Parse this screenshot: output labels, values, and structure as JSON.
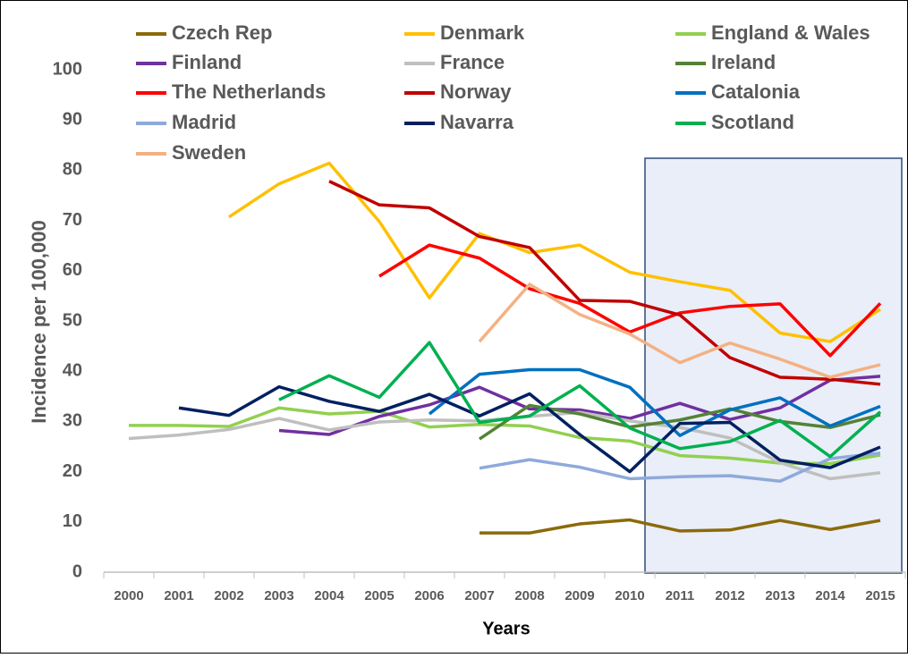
{
  "chart_data": {
    "type": "line",
    "y_label": "Incidence per 100,000",
    "x_label": "Years",
    "categories": [
      "2000",
      "2001",
      "2002",
      "2003",
      "2004",
      "2005",
      "2006",
      "2007",
      "2008",
      "2009",
      "2010",
      "2011",
      "2012",
      "2013",
      "2014",
      "2015"
    ],
    "ylim": [
      0,
      100
    ],
    "yticks": [
      0,
      10,
      20,
      30,
      40,
      50,
      60,
      70,
      80,
      90,
      100
    ],
    "grid": false,
    "series": [
      {
        "name": "Czech Rep",
        "color": "#8b6a0a",
        "values": [
          null,
          null,
          null,
          null,
          null,
          null,
          null,
          7.8,
          7.8,
          9.6,
          10.4,
          8.2,
          8.4,
          10.3,
          8.5,
          10.3
        ]
      },
      {
        "name": "Denmark",
        "color": "#ffc000",
        "values": [
          null,
          null,
          70.7,
          77.3,
          81.4,
          69.8,
          54.6,
          67.4,
          63.6,
          65.1,
          59.7,
          57.8,
          56.1,
          47.6,
          45.9,
          52.3
        ]
      },
      {
        "name": "England & Wales",
        "color": "#92d050",
        "values": [
          29.2,
          29.2,
          29.0,
          32.7,
          31.5,
          32.0,
          28.9,
          29.4,
          29.1,
          26.8,
          26.1,
          23.2,
          22.7,
          21.7,
          21.6,
          23.3
        ]
      },
      {
        "name": "Finland",
        "color": "#7030a0",
        "values": [
          null,
          null,
          null,
          28.2,
          27.4,
          31.0,
          33.3,
          36.8,
          32.5,
          32.3,
          30.6,
          33.6,
          30.4,
          32.7,
          38.2,
          39.0
        ]
      },
      {
        "name": "France",
        "color": "#bfbfbf",
        "values": [
          26.6,
          27.3,
          28.4,
          30.6,
          28.3,
          29.9,
          30.3,
          30.1,
          31.0,
          31.8,
          30.1,
          28.8,
          26.7,
          21.8,
          18.6,
          19.8
        ]
      },
      {
        "name": "Ireland",
        "color": "#548235",
        "values": [
          null,
          null,
          null,
          null,
          null,
          null,
          null,
          26.5,
          33.2,
          31.5,
          28.9,
          30.3,
          32.5,
          30.0,
          28.8,
          31.3
        ]
      },
      {
        "name": "The Netherlands",
        "color": "#ff0000",
        "values": [
          null,
          null,
          null,
          null,
          null,
          58.9,
          65.1,
          62.5,
          56.4,
          53.5,
          47.8,
          51.6,
          52.9,
          53.4,
          43.1,
          53.5
        ]
      },
      {
        "name": "Norway",
        "color": "#c00000",
        "values": [
          null,
          null,
          null,
          null,
          77.8,
          73.1,
          72.5,
          66.8,
          64.6,
          54.1,
          53.9,
          51.2,
          42.7,
          38.8,
          38.4,
          37.4
        ]
      },
      {
        "name": "Catalonia",
        "color": "#0070c0",
        "values": [
          null,
          null,
          null,
          null,
          null,
          null,
          31.5,
          39.4,
          40.3,
          40.3,
          36.8,
          27.2,
          32.3,
          34.7,
          29.1,
          33.0
        ]
      },
      {
        "name": "Madrid",
        "color": "#8eaadb",
        "values": [
          null,
          null,
          null,
          null,
          null,
          null,
          null,
          20.7,
          22.4,
          20.9,
          18.6,
          19.0,
          19.2,
          18.1,
          22.6,
          23.7
        ]
      },
      {
        "name": "Navarra",
        "color": "#002060",
        "values": [
          null,
          32.7,
          31.2,
          36.9,
          34.0,
          32.0,
          35.4,
          31.1,
          35.5,
          27.4,
          20.0,
          29.6,
          29.8,
          22.3,
          20.8,
          24.9
        ]
      },
      {
        "name": "Scotland",
        "color": "#00b050",
        "values": [
          null,
          null,
          null,
          34.3,
          39.1,
          34.8,
          45.7,
          29.8,
          31.1,
          37.1,
          28.7,
          24.6,
          26.0,
          30.2,
          23.0,
          31.9
        ]
      },
      {
        "name": "Sweden",
        "color": "#f4b183",
        "values": [
          null,
          null,
          null,
          null,
          null,
          null,
          null,
          45.9,
          57.3,
          51.3,
          47.4,
          41.7,
          45.6,
          42.4,
          38.8,
          41.3
        ]
      }
    ]
  }
}
